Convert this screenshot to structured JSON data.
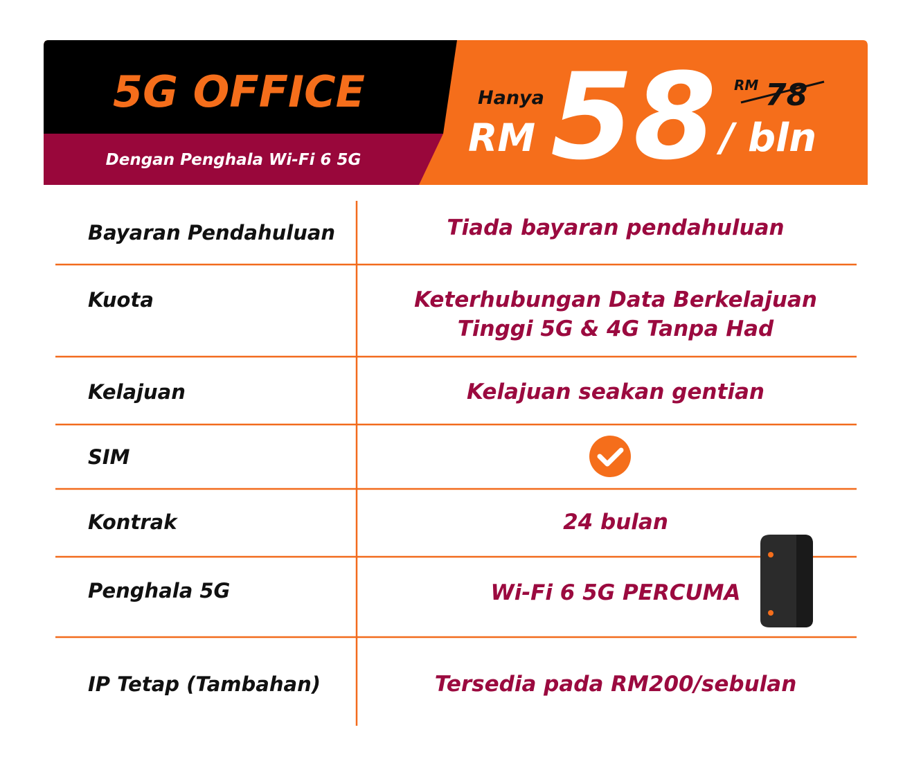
{
  "header": {
    "title": "5G OFFICE",
    "subtitle": "Dengan Penghala Wi-Fi 6 5G",
    "price": {
      "prefix": "Hanya",
      "currency": "RM",
      "amount": "58",
      "old_currency": "RM",
      "old_amount": "78",
      "period": "/ bln"
    }
  },
  "table": {
    "rows": [
      {
        "label": "Bayaran Pendahuluan",
        "value": [
          "Tiada bayaran pendahuluan"
        ]
      },
      {
        "label": "Kuota",
        "value": [
          "Keterhubungan Data Berkelajuan",
          "Tinggi 5G & 4G Tanpa Had"
        ]
      },
      {
        "label": "Kelajuan",
        "value": [
          "Kelajuan seakan gentian"
        ]
      },
      {
        "label": "SIM"
      },
      {
        "label": "Kontrak",
        "value": [
          "24 bulan"
        ]
      },
      {
        "label": "Penghala 5G",
        "value": [
          "Wi-Fi 6 5G PERCUMA"
        ]
      },
      {
        "label": "IP Tetap (Tambahan)",
        "value": [
          "Tersedia pada RM200/sebulan"
        ]
      }
    ]
  }
}
